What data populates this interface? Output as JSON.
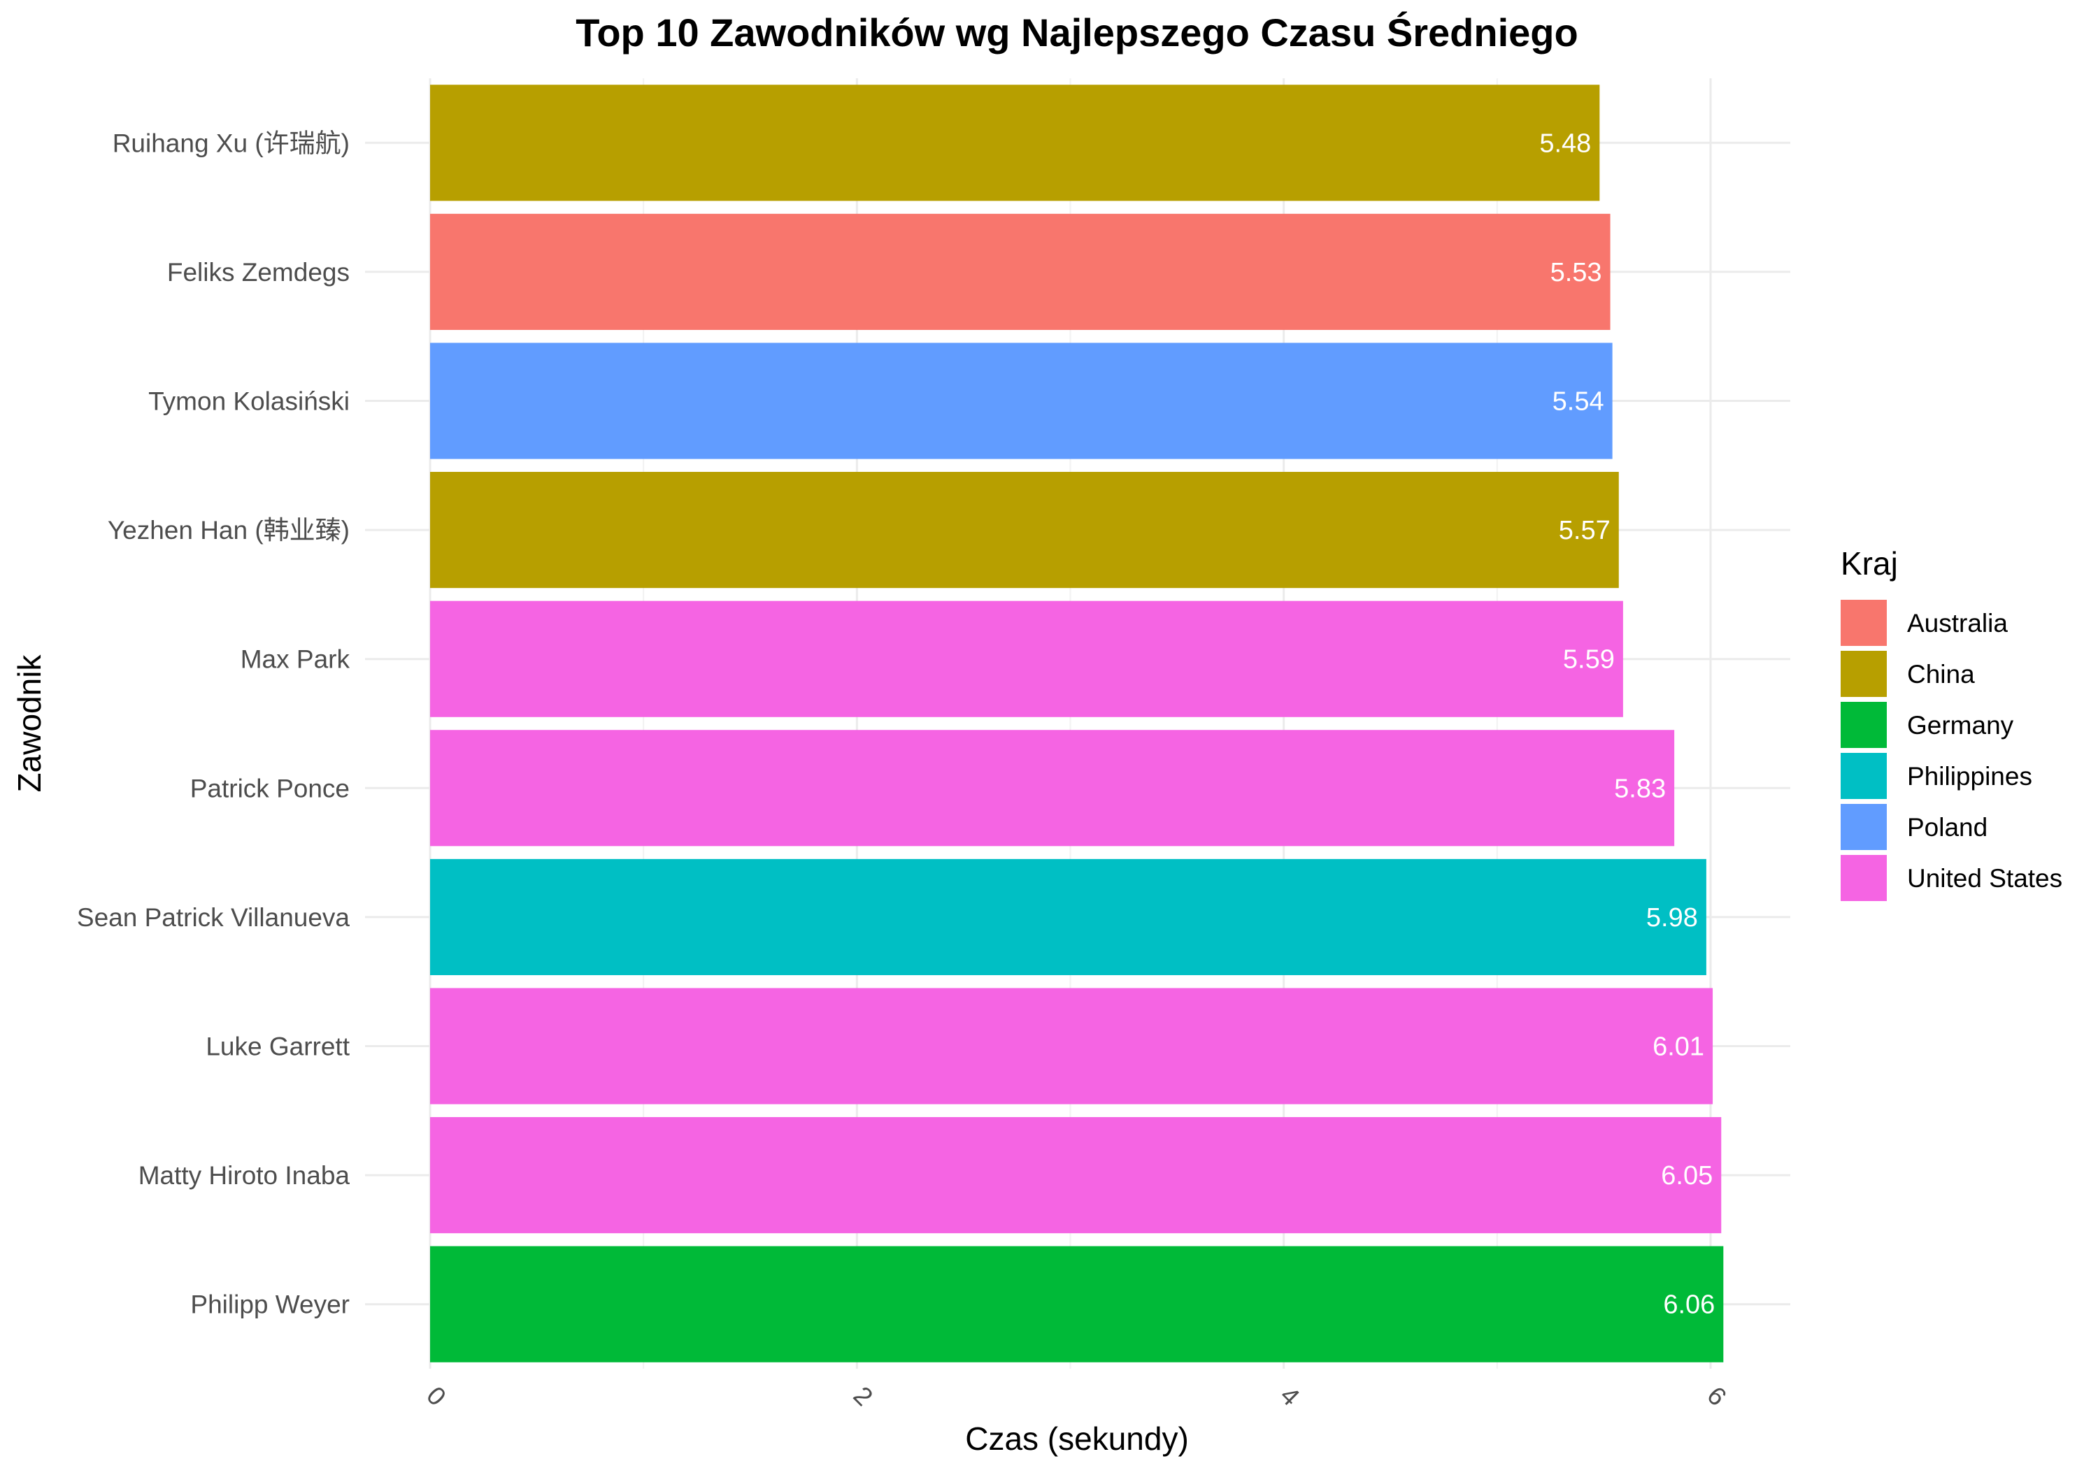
{
  "chart_data": {
    "type": "bar",
    "orientation": "horizontal",
    "title": "Top 10 Zawodników wg Najlepszego Czasu Średniego",
    "xlabel": "Czas (sekundy)",
    "ylabel": "Zawodnik",
    "xlim": [
      0,
      6.36
    ],
    "xticks": [
      0,
      2,
      4,
      6
    ],
    "xtick_rotation": "angled",
    "grid": true,
    "legend": {
      "title": "Kraj",
      "placement": "right",
      "entries": [
        {
          "name": "Australia",
          "color": "#F8766D"
        },
        {
          "name": "China",
          "color": "#B79F00"
        },
        {
          "name": "Germany",
          "color": "#00BA38"
        },
        {
          "name": "Philippines",
          "color": "#00BFC4"
        },
        {
          "name": "Poland",
          "color": "#619CFF"
        },
        {
          "name": "United States",
          "color": "#F564E3"
        }
      ]
    },
    "categories": [
      "Ruihang Xu (许瑞航)",
      "Feliks Zemdegs",
      "Tymon Kolasiński",
      "Yezhen Han (韩业臻)",
      "Max Park",
      "Patrick Ponce",
      "Sean Patrick Villanueva",
      "Luke Garrett",
      "Matty Hiroto Inaba",
      "Philipp Weyer"
    ],
    "values": [
      5.48,
      5.53,
      5.54,
      5.57,
      5.59,
      5.83,
      5.98,
      6.01,
      6.05,
      6.06
    ],
    "labels": [
      "5.48",
      "5.53",
      "5.54",
      "5.57",
      "5.59",
      "5.83",
      "5.98",
      "6.01",
      "6.05",
      "6.06"
    ],
    "countries": [
      "China",
      "Australia",
      "Poland",
      "China",
      "United States",
      "United States",
      "Philippines",
      "United States",
      "United States",
      "Germany"
    ]
  }
}
